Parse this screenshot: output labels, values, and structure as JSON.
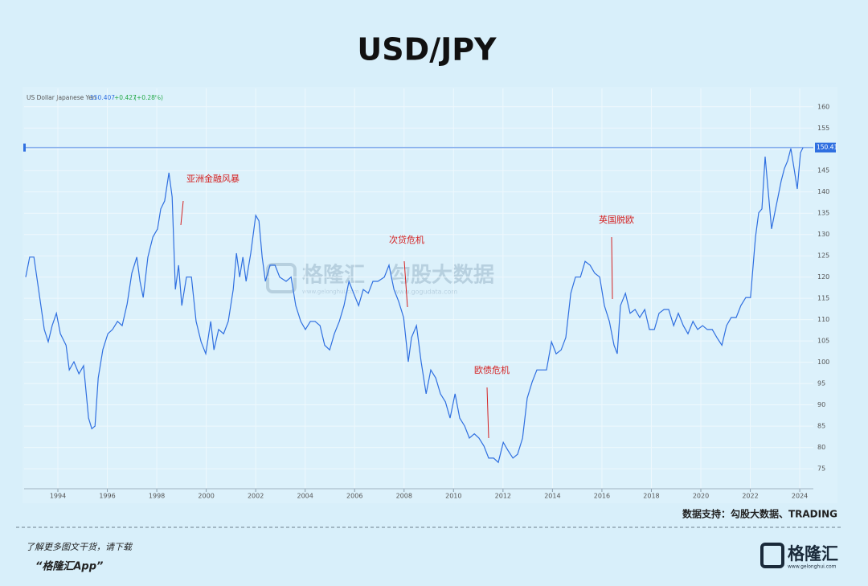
{
  "chart_data": {
    "type": "line",
    "title": "USD/JPY",
    "instrument": "US Dollar Japanese Yen",
    "last_price": "150.407",
    "change": "+0.427",
    "change_pct": "(+0.28%)",
    "last_value": 150.41,
    "color": "#2f6fe0",
    "grid": true,
    "xlim": [
      1992.635,
      2024.55
    ],
    "ylim": [
      70.3,
      164.3
    ],
    "xticks": [
      1994,
      1996,
      1998,
      2000,
      2002,
      2004,
      2006,
      2008,
      2010,
      2012,
      2014,
      2016,
      2018,
      2020,
      2022,
      2024
    ],
    "yticks": [
      75,
      80,
      85,
      90,
      95,
      100,
      105,
      110,
      115,
      120,
      125,
      130,
      135,
      140,
      145,
      150,
      155,
      160
    ],
    "x": [
      1992.7,
      1992.86,
      1993.03,
      1993.22,
      1993.45,
      1993.61,
      1993.77,
      1993.94,
      1994.1,
      1994.33,
      1994.46,
      1994.65,
      1994.85,
      1995.04,
      1995.24,
      1995.37,
      1995.5,
      1995.63,
      1995.82,
      1996.02,
      1996.21,
      1996.41,
      1996.6,
      1996.8,
      1996.99,
      1997.19,
      1997.32,
      1997.45,
      1997.64,
      1997.84,
      1998.03,
      1998.16,
      1998.32,
      1998.49,
      1998.62,
      1998.75,
      1998.88,
      1999.01,
      1999.2,
      1999.4,
      1999.59,
      1999.79,
      1999.98,
      2000.18,
      2000.31,
      2000.5,
      2000.7,
      2000.89,
      2001.09,
      2001.22,
      2001.35,
      2001.48,
      2001.61,
      2001.8,
      2002.0,
      2002.13,
      2002.26,
      2002.39,
      2002.58,
      2002.78,
      2002.97,
      2003.23,
      2003.43,
      2003.62,
      2003.82,
      2004.01,
      2004.21,
      2004.4,
      2004.6,
      2004.79,
      2004.99,
      2005.18,
      2005.38,
      2005.57,
      2005.77,
      2005.96,
      2006.16,
      2006.35,
      2006.55,
      2006.74,
      2006.94,
      2007.2,
      2007.39,
      2007.59,
      2007.78,
      2007.98,
      2008.17,
      2008.3,
      2008.5,
      2008.69,
      2008.89,
      2009.08,
      2009.28,
      2009.47,
      2009.67,
      2009.86,
      2010.06,
      2010.25,
      2010.45,
      2010.64,
      2010.84,
      2011.03,
      2011.23,
      2011.42,
      2011.62,
      2011.81,
      2012.01,
      2012.2,
      2012.4,
      2012.59,
      2012.79,
      2012.98,
      2013.18,
      2013.37,
      2013.57,
      2013.76,
      2013.96,
      2014.15,
      2014.35,
      2014.54,
      2014.74,
      2014.93,
      2015.13,
      2015.32,
      2015.52,
      2015.71,
      2015.91,
      2016.1,
      2016.3,
      2016.49,
      2016.62,
      2016.75,
      2016.95,
      2017.14,
      2017.34,
      2017.53,
      2017.73,
      2017.92,
      2018.12,
      2018.31,
      2018.51,
      2018.7,
      2018.9,
      2019.09,
      2019.29,
      2019.48,
      2019.68,
      2019.87,
      2020.07,
      2020.26,
      2020.46,
      2020.65,
      2020.85,
      2021.04,
      2021.23,
      2021.43,
      2021.62,
      2021.82,
      2022.01,
      2022.21,
      2022.34,
      2022.47,
      2022.6,
      2022.73,
      2022.86,
      2022.99,
      2023.12,
      2023.25,
      2023.38,
      2023.51,
      2023.64,
      2023.77,
      2023.9,
      2024.03,
      2024.13
    ],
    "values": [
      120,
      124.7,
      124.7,
      117.1,
      107.7,
      104.8,
      108.6,
      111.5,
      106.7,
      104,
      98.2,
      100.1,
      97.3,
      99.2,
      86.9,
      84.4,
      85,
      96.3,
      103,
      106.7,
      107.7,
      109.6,
      108.6,
      113.7,
      120.9,
      124.7,
      119,
      115.2,
      124.7,
      129.4,
      131.3,
      136,
      137.9,
      144.5,
      138.8,
      117.1,
      122.8,
      113.3,
      120,
      120,
      109.6,
      104.8,
      102,
      109.6,
      102.9,
      107.7,
      106.7,
      109.6,
      117.1,
      125.6,
      120,
      124.7,
      119,
      125.6,
      134.5,
      133.2,
      124.7,
      119,
      122.8,
      122.8,
      120,
      119,
      120,
      113.3,
      109.6,
      107.7,
      109.6,
      109.6,
      108.6,
      104,
      102.9,
      106.7,
      109.6,
      113.3,
      119,
      116.2,
      113.3,
      117.1,
      116.2,
      119,
      119,
      120,
      122.8,
      117.1,
      114.3,
      110.5,
      100.1,
      105.8,
      108.6,
      100.1,
      92.6,
      98.2,
      96.3,
      92.6,
      90.7,
      86.9,
      92.6,
      86.9,
      85,
      82.2,
      83.2,
      82.2,
      80.3,
      77.5,
      77.5,
      76.5,
      81.2,
      79.3,
      77.5,
      78.4,
      82.2,
      91.6,
      95.4,
      98.2,
      98.2,
      98.2,
      104.8,
      102,
      102.9,
      105.8,
      116.2,
      120,
      120,
      123.7,
      122.8,
      120.9,
      120,
      113.3,
      109.6,
      104,
      102,
      113.3,
      116.2,
      111.5,
      112.4,
      110.5,
      112.4,
      107.7,
      107.7,
      111.5,
      112.4,
      112.4,
      108.6,
      111.5,
      108.6,
      106.7,
      109.6,
      107.7,
      108.6,
      107.7,
      107.7,
      105.8,
      104,
      108.6,
      110.5,
      110.5,
      113.3,
      115.2,
      115.2,
      129.4,
      135.1,
      136,
      148.3,
      139.8,
      131.3,
      135.1,
      138.8,
      142.6,
      145.5,
      147.3,
      150.2,
      145.5,
      140.7,
      149.2,
      150.4
    ],
    "annotations": [
      "亚洲金融风暴",
      "次贷危机",
      "欧债危机",
      "英国脱欧"
    ],
    "source": "数据支持：勾股大数据、TRADING"
  },
  "watermark": {
    "brand": "格隆汇",
    "brand_url": "www.gelonghui.com",
    "data_brand": "勾股大数据",
    "data_url": "www.gogudata.com"
  },
  "footer": {
    "line1": "了解更多图文干货，请下载",
    "line2": "“格隆汇App”",
    "logo": "格隆汇",
    "logo_url": "www.gelonghui.com"
  }
}
